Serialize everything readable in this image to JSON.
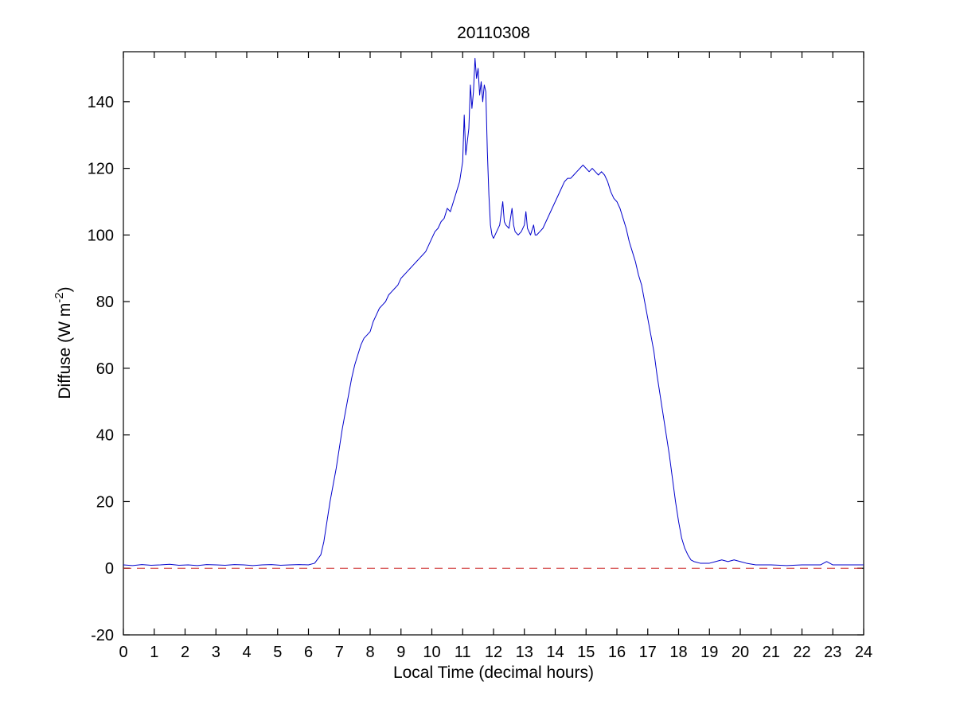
{
  "page": {
    "background": "#ffffff"
  },
  "labels": {
    "ylabel_pre": "Diffuse (W m",
    "ylabel_sup": "-2",
    "ylabel_post": ")"
  },
  "chart_data": {
    "type": "line",
    "title": "20110308",
    "xlabel": "Local Time (decimal hours)",
    "ylabel": "Diffuse (W m^-2)",
    "xlim": [
      0,
      24
    ],
    "ylim": [
      -20,
      155
    ],
    "xticks": [
      0,
      1,
      2,
      3,
      4,
      5,
      6,
      7,
      8,
      9,
      10,
      11,
      12,
      13,
      14,
      15,
      16,
      17,
      18,
      19,
      20,
      21,
      22,
      23,
      24
    ],
    "yticks": [
      -20,
      0,
      20,
      40,
      60,
      80,
      100,
      120,
      140
    ],
    "grid": false,
    "legend": "none",
    "frame_color": "#000000",
    "background": "#ffffff",
    "series": [
      {
        "name": "diffuse-irradiance",
        "color": "#0000cc",
        "width": 1,
        "style": "solid",
        "points": [
          [
            0,
            1
          ],
          [
            0.3,
            0.8
          ],
          [
            0.6,
            1.1
          ],
          [
            0.9,
            0.9
          ],
          [
            1.2,
            1
          ],
          [
            1.5,
            1.2
          ],
          [
            1.8,
            0.9
          ],
          [
            2.1,
            1
          ],
          [
            2.4,
            0.8
          ],
          [
            2.7,
            1.1
          ],
          [
            3,
            1
          ],
          [
            3.3,
            0.9
          ],
          [
            3.6,
            1.1
          ],
          [
            3.9,
            1
          ],
          [
            4.2,
            0.8
          ],
          [
            4.5,
            1
          ],
          [
            4.8,
            1.1
          ],
          [
            5.1,
            0.9
          ],
          [
            5.4,
            1
          ],
          [
            5.7,
            1.1
          ],
          [
            6,
            1
          ],
          [
            6.2,
            1.5
          ],
          [
            6.4,
            4
          ],
          [
            6.5,
            8
          ],
          [
            6.6,
            14
          ],
          [
            6.7,
            20
          ],
          [
            6.8,
            25
          ],
          [
            6.9,
            30
          ],
          [
            7,
            36
          ],
          [
            7.1,
            42
          ],
          [
            7.2,
            47
          ],
          [
            7.3,
            52
          ],
          [
            7.4,
            57
          ],
          [
            7.5,
            61
          ],
          [
            7.6,
            64
          ],
          [
            7.7,
            67
          ],
          [
            7.8,
            69
          ],
          [
            7.9,
            70
          ],
          [
            8,
            71
          ],
          [
            8.1,
            74
          ],
          [
            8.2,
            76
          ],
          [
            8.3,
            78
          ],
          [
            8.4,
            79
          ],
          [
            8.5,
            80
          ],
          [
            8.6,
            82
          ],
          [
            8.7,
            83
          ],
          [
            8.8,
            84
          ],
          [
            8.9,
            85
          ],
          [
            9,
            87
          ],
          [
            9.1,
            88
          ],
          [
            9.2,
            89
          ],
          [
            9.3,
            90
          ],
          [
            9.4,
            91
          ],
          [
            9.5,
            92
          ],
          [
            9.6,
            93
          ],
          [
            9.7,
            94
          ],
          [
            9.8,
            95
          ],
          [
            9.9,
            97
          ],
          [
            10,
            99
          ],
          [
            10.1,
            101
          ],
          [
            10.2,
            102
          ],
          [
            10.3,
            104
          ],
          [
            10.4,
            105
          ],
          [
            10.5,
            108
          ],
          [
            10.6,
            107
          ],
          [
            10.7,
            110
          ],
          [
            10.8,
            113
          ],
          [
            10.9,
            116
          ],
          [
            11,
            122
          ],
          [
            11.05,
            136
          ],
          [
            11.1,
            124
          ],
          [
            11.15,
            128
          ],
          [
            11.2,
            132
          ],
          [
            11.25,
            145
          ],
          [
            11.3,
            138
          ],
          [
            11.35,
            143
          ],
          [
            11.4,
            153
          ],
          [
            11.45,
            147
          ],
          [
            11.5,
            150
          ],
          [
            11.55,
            142
          ],
          [
            11.6,
            146
          ],
          [
            11.65,
            140
          ],
          [
            11.7,
            145
          ],
          [
            11.75,
            143
          ],
          [
            11.8,
            125
          ],
          [
            11.85,
            112
          ],
          [
            11.9,
            103
          ],
          [
            11.95,
            100
          ],
          [
            12,
            99
          ],
          [
            12.1,
            101
          ],
          [
            12.2,
            103
          ],
          [
            12.3,
            110
          ],
          [
            12.35,
            104
          ],
          [
            12.4,
            103
          ],
          [
            12.5,
            102
          ],
          [
            12.6,
            108
          ],
          [
            12.65,
            103
          ],
          [
            12.7,
            101
          ],
          [
            12.8,
            100
          ],
          [
            12.9,
            101
          ],
          [
            13,
            103
          ],
          [
            13.05,
            107
          ],
          [
            13.1,
            102
          ],
          [
            13.2,
            100
          ],
          [
            13.3,
            103
          ],
          [
            13.35,
            100
          ],
          [
            13.4,
            100
          ],
          [
            13.5,
            101
          ],
          [
            13.6,
            102
          ],
          [
            13.7,
            104
          ],
          [
            13.8,
            106
          ],
          [
            13.9,
            108
          ],
          [
            14,
            110
          ],
          [
            14.1,
            112
          ],
          [
            14.2,
            114
          ],
          [
            14.3,
            116
          ],
          [
            14.4,
            117
          ],
          [
            14.5,
            117
          ],
          [
            14.6,
            118
          ],
          [
            14.7,
            119
          ],
          [
            14.8,
            120
          ],
          [
            14.9,
            121
          ],
          [
            15,
            120
          ],
          [
            15.1,
            119
          ],
          [
            15.2,
            120
          ],
          [
            15.3,
            119
          ],
          [
            15.4,
            118
          ],
          [
            15.5,
            119
          ],
          [
            15.6,
            118
          ],
          [
            15.7,
            116
          ],
          [
            15.8,
            113
          ],
          [
            15.9,
            111
          ],
          [
            16,
            110
          ],
          [
            16.1,
            108
          ],
          [
            16.2,
            105
          ],
          [
            16.3,
            102
          ],
          [
            16.4,
            98
          ],
          [
            16.5,
            95
          ],
          [
            16.6,
            92
          ],
          [
            16.7,
            88
          ],
          [
            16.8,
            85
          ],
          [
            16.9,
            80
          ],
          [
            17,
            75
          ],
          [
            17.1,
            70
          ],
          [
            17.2,
            65
          ],
          [
            17.3,
            58
          ],
          [
            17.4,
            52
          ],
          [
            17.5,
            46
          ],
          [
            17.6,
            40
          ],
          [
            17.7,
            34
          ],
          [
            17.8,
            27
          ],
          [
            17.9,
            20
          ],
          [
            18,
            14
          ],
          [
            18.1,
            9
          ],
          [
            18.2,
            6
          ],
          [
            18.3,
            4
          ],
          [
            18.4,
            2.5
          ],
          [
            18.5,
            2
          ],
          [
            18.7,
            1.5
          ],
          [
            19,
            1.5
          ],
          [
            19.2,
            2
          ],
          [
            19.4,
            2.5
          ],
          [
            19.6,
            2
          ],
          [
            19.8,
            2.5
          ],
          [
            20,
            2
          ],
          [
            20.2,
            1.5
          ],
          [
            20.5,
            1
          ],
          [
            21,
            1
          ],
          [
            21.5,
            0.8
          ],
          [
            22,
            1
          ],
          [
            22.3,
            1
          ],
          [
            22.6,
            1
          ],
          [
            22.8,
            2
          ],
          [
            23,
            1
          ],
          [
            23.3,
            1
          ],
          [
            23.6,
            1
          ],
          [
            24,
            1
          ]
        ]
      },
      {
        "name": "zero-reference",
        "color": "#cc2222",
        "width": 1,
        "style": "dashed",
        "points": [
          [
            0,
            0
          ],
          [
            24,
            0
          ]
        ]
      }
    ]
  }
}
